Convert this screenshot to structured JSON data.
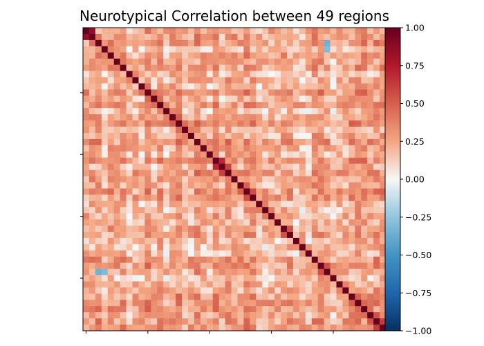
{
  "chart_data": {
    "type": "heatmap",
    "title": "Neurotypical Correlation between 49 regions",
    "n": 49,
    "colormap": "RdBu_r",
    "colorbar": {
      "vmin": -1.0,
      "vmax": 1.0,
      "ticks": [
        {
          "value": 1.0,
          "label": "1.00"
        },
        {
          "value": 0.75,
          "label": "0.75"
        },
        {
          "value": 0.5,
          "label": "0.50"
        },
        {
          "value": 0.25,
          "label": "0.25"
        },
        {
          "value": 0.0,
          "label": "0.00"
        },
        {
          "value": -0.25,
          "label": "−0.25"
        },
        {
          "value": -0.5,
          "label": "−0.50"
        },
        {
          "value": -0.75,
          "label": "−0.75"
        },
        {
          "value": -1.0,
          "label": "−1.00"
        }
      ]
    },
    "x_ticks_at": [
      0,
      10,
      20,
      30,
      40
    ],
    "y_ticks_at": [
      10,
      20,
      30,
      40
    ],
    "diagonal_value": 1.0,
    "notable_values": [
      {
        "row": 1,
        "col": 0,
        "value": 0.85
      },
      {
        "row": 0,
        "col": 1,
        "value": 0.85
      },
      {
        "row": 2,
        "col": 39,
        "value": -0.35
      },
      {
        "row": 3,
        "col": 39,
        "value": -0.3
      },
      {
        "row": 18,
        "col": 39,
        "value": 0.45
      },
      {
        "row": 22,
        "col": 21,
        "value": 0.7
      },
      {
        "row": 23,
        "col": 22,
        "value": 0.6
      },
      {
        "row": 32,
        "col": 33,
        "value": 0.55
      }
    ],
    "grid": false,
    "legend": "none"
  }
}
